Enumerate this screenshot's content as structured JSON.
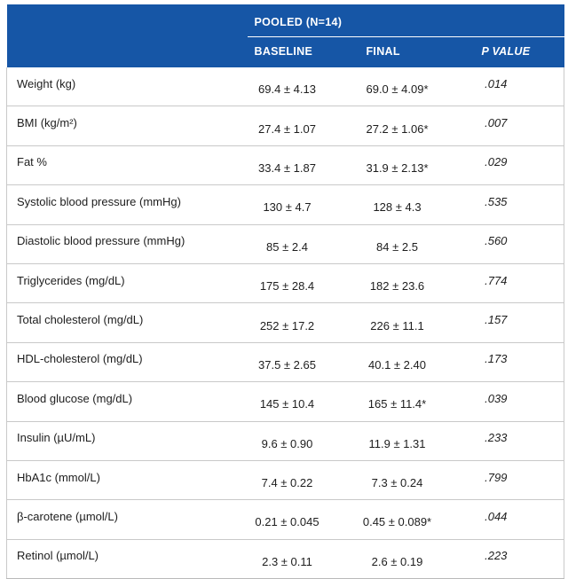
{
  "colors": {
    "header_bg": "#1656A6",
    "header_text": "#ffffff",
    "row_border": "#c9c9c9",
    "body_text": "#1d1d1d"
  },
  "table": {
    "group_header": "POOLED (N=14)",
    "columns": [
      "BASELINE",
      "FINAL",
      "P VALUE"
    ],
    "rows": [
      {
        "label": "Weight (kg)",
        "baseline": "69.4 ± 4.13",
        "final": "69.0 ± 4.09*",
        "p": ".014"
      },
      {
        "label": "BMI (kg/m²)",
        "baseline": "27.4 ± 1.07",
        "final": "27.2 ± 1.06*",
        "p": ".007"
      },
      {
        "label": "Fat %",
        "baseline": "33.4 ± 1.87",
        "final": "31.9 ± 2.13*",
        "p": ".029"
      },
      {
        "label": "Systolic blood pressure (mmHg)",
        "baseline": "130 ± 4.7",
        "final": "128 ± 4.3",
        "p": ".535"
      },
      {
        "label": "Diastolic blood pressure (mmHg)",
        "baseline": "85 ± 2.4",
        "final": "84 ± 2.5",
        "p": ".560"
      },
      {
        "label": "Triglycerides (mg/dL)",
        "baseline": "175 ± 28.4",
        "final": "182 ± 23.6",
        "p": ".774"
      },
      {
        "label": "Total cholesterol (mg/dL)",
        "baseline": "252 ± 17.2",
        "final": "226 ± 11.1",
        "p": ".157"
      },
      {
        "label": "HDL-cholesterol (mg/dL)",
        "baseline": "37.5 ± 2.65",
        "final": "40.1 ± 2.40",
        "p": ".173"
      },
      {
        "label": "Blood glucose (mg/dL)",
        "baseline": "145 ± 10.4",
        "final": "165 ± 11.4*",
        "p": ".039"
      },
      {
        "label": "Insulin (µU/mL)",
        "baseline": "9.6 ± 0.90",
        "final": "11.9 ± 1.31",
        "p": ".233"
      },
      {
        "label": "HbA1c (mmol/L)",
        "baseline": "7.4 ± 0.22",
        "final": "7.3 ± 0.24",
        "p": ".799"
      },
      {
        "label": "β-carotene (µmol/L)",
        "baseline": "0.21 ± 0.045",
        "final": "0.45 ± 0.089*",
        "p": ".044"
      },
      {
        "label": "Retinol (µmol/L)",
        "baseline": "2.3 ± 0.11",
        "final": "2.6 ± 0.19",
        "p": ".223"
      }
    ]
  }
}
